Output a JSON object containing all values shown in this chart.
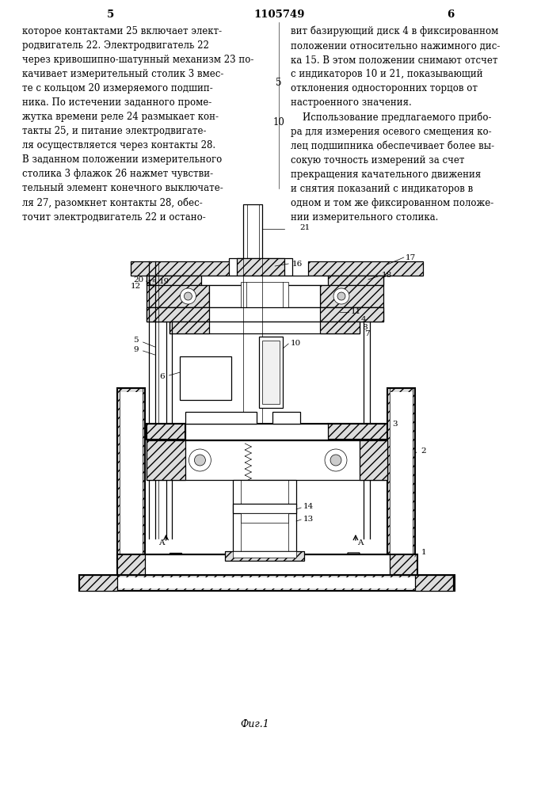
{
  "page_number_left": "5",
  "page_number_center": "1105749",
  "page_number_right": "6",
  "text_left": "которое контактами 25 включает элект-\nродвигатель 22. Электродвигатель 22\nчерез кривошипно-шатунный механизм 23 по-\nкачивает измерительный столик 3 вмес-\nте с кольцом 20 измеряемого подшип-\nника. По истечении заданного проме-\nжутка времени реле 24 размыкает кон-\nтакты 25, и питание электродвигате-\nля осуществляется через контакты 28.\nВ заданном положении измерительного\nстолика 3 флажок 26 нажмет чувстви-\nтельный элемент конечного выключате-\nля 27, разомкнет контакты 28, обес-\nточит электродвигатель 22 и остано-",
  "text_right": "вит базирующий диск 4 в фиксированном\nположении относительно нажимного дис-\nка 15. В этом положении снимают отсчет\nс индикаторов 10 и 21, показывающий\nотклонения односторонних торцов от\nнастроенного значения.\n    Использование предлагаемого прибо-\nра для измерения осевого смещения ко-\nлец подшипника обеспечивает более вы-\nсокую точность измерений за счет\nпрекращения качательного движения\nи снятия показаний с индикаторов в\nодном и том же фиксированном положе-\nнии измерительного столика.",
  "line_number_5": "5",
  "line_number_10": "10",
  "figure_label": "Фиг.1",
  "bg_color": "#ffffff",
  "text_color": "#000000",
  "font_size_body": 8.5,
  "font_size_header": 9.5
}
